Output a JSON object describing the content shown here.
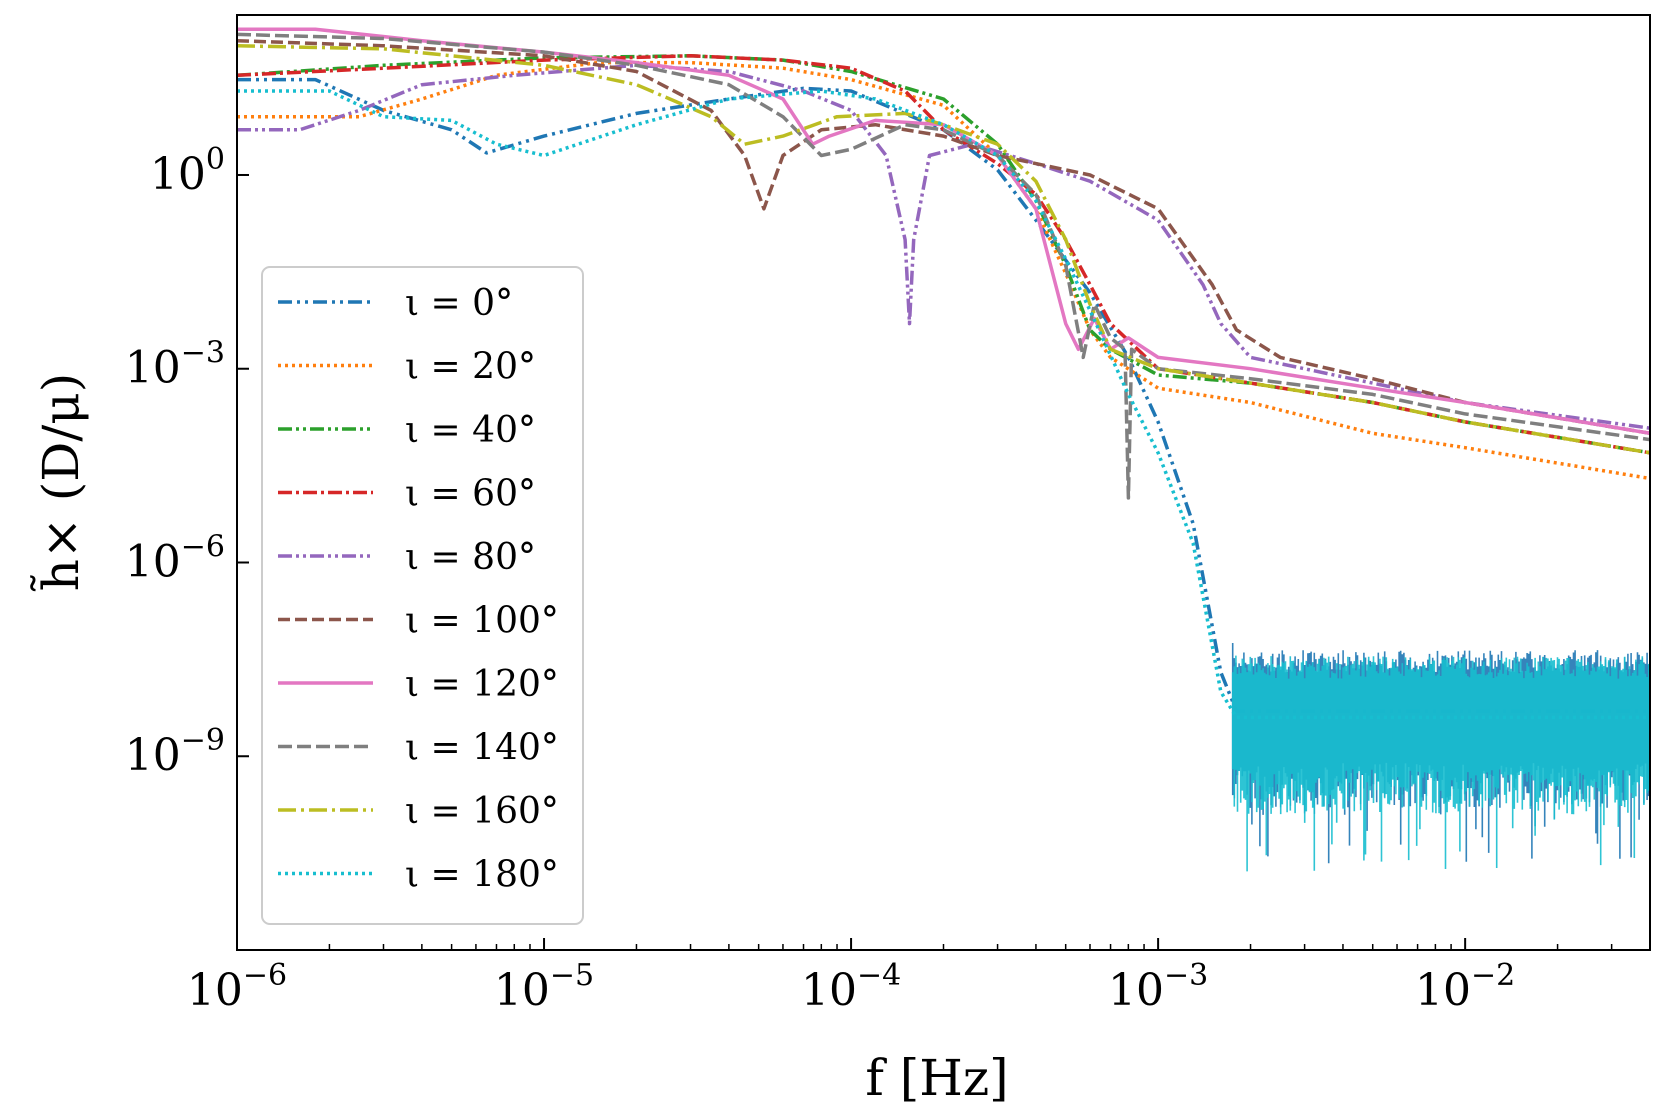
{
  "chart_data": {
    "type": "line",
    "scale": "log-log",
    "xlabel": "f [Hz]",
    "ylabel": "h̃× (D/μ)",
    "xlim": [
      1e-06,
      0.04
    ],
    "ylim": [
      1e-12,
      300
    ],
    "x_ticks": [
      {
        "value": 1e-06,
        "base": "10",
        "exp": "−6"
      },
      {
        "value": 1e-05,
        "base": "10",
        "exp": "−5"
      },
      {
        "value": 0.0001,
        "base": "10",
        "exp": "−4"
      },
      {
        "value": 0.001,
        "base": "10",
        "exp": "−3"
      },
      {
        "value": 0.01,
        "base": "10",
        "exp": "−2"
      }
    ],
    "y_ticks": [
      {
        "value": 1,
        "base": "10",
        "exp": "0"
      },
      {
        "value": 0.001,
        "base": "10",
        "exp": "−3"
      },
      {
        "value": 1e-06,
        "base": "10",
        "exp": "−6"
      },
      {
        "value": 1e-09,
        "base": "10",
        "exp": "−9"
      }
    ],
    "legend_position": "center-left",
    "series": [
      {
        "name": "ι = 0°",
        "color": "#1f77b4",
        "dash": "14,5,3,5,3,5",
        "width": 3.5,
        "noise": true,
        "points": [
          [
            1e-06,
            30
          ],
          [
            1.8e-06,
            30
          ],
          [
            3e-06,
            10
          ],
          [
            5e-06,
            5
          ],
          [
            6.5e-06,
            2.2
          ],
          [
            1e-05,
            4
          ],
          [
            2e-05,
            9
          ],
          [
            4e-05,
            15
          ],
          [
            7e-05,
            22
          ],
          [
            0.0001,
            20
          ],
          [
            0.0002,
            5
          ],
          [
            0.0003,
            1.2
          ],
          [
            0.0004,
            0.2
          ],
          [
            0.0006,
            0.015
          ],
          [
            0.0008,
            0.0015
          ],
          [
            0.001,
            0.00015
          ],
          [
            0.0013,
            4e-06
          ],
          [
            0.0016,
            2e-08
          ],
          [
            0.0018,
            5e-09
          ],
          [
            0.04,
            5e-09
          ]
        ]
      },
      {
        "name": "ι = 20°",
        "color": "#ff7f0e",
        "dash": "3,4",
        "width": 3.5,
        "points": [
          [
            1e-06,
            8
          ],
          [
            2.5e-06,
            8
          ],
          [
            4e-06,
            15
          ],
          [
            7e-06,
            35
          ],
          [
            1.5e-05,
            55
          ],
          [
            3e-05,
            55
          ],
          [
            6e-05,
            45
          ],
          [
            0.0001,
            30
          ],
          [
            0.0002,
            12
          ],
          [
            0.0003,
            2
          ],
          [
            0.0004,
            0.3
          ],
          [
            0.0005,
            0.03
          ],
          [
            0.0006,
            0.004
          ],
          [
            0.0007,
            0.0015
          ],
          [
            0.001,
            0.0005
          ],
          [
            0.002,
            0.0003
          ],
          [
            0.005,
            0.0001
          ],
          [
            0.01,
            6e-05
          ],
          [
            0.04,
            2e-05
          ]
        ]
      },
      {
        "name": "ι = 40°",
        "color": "#2ca02c",
        "dash": "14,4,3,4,3,4",
        "width": 3.5,
        "points": [
          [
            1e-06,
            35
          ],
          [
            3e-06,
            50
          ],
          [
            1e-05,
            65
          ],
          [
            3e-05,
            70
          ],
          [
            6e-05,
            60
          ],
          [
            0.0001,
            40
          ],
          [
            0.0002,
            15
          ],
          [
            0.0003,
            3
          ],
          [
            0.0004,
            0.4
          ],
          [
            0.0005,
            0.04
          ],
          [
            0.0006,
            0.004
          ],
          [
            0.0007,
            0.002
          ],
          [
            0.001,
            0.0008
          ],
          [
            0.002,
            0.0006
          ],
          [
            0.005,
            0.0003
          ],
          [
            0.01,
            0.00015
          ],
          [
            0.04,
            5e-05
          ]
        ]
      },
      {
        "name": "ι = 60°",
        "color": "#d62728",
        "dash": "14,4,3,4",
        "width": 3.5,
        "points": [
          [
            1e-06,
            35
          ],
          [
            3e-06,
            45
          ],
          [
            1e-05,
            60
          ],
          [
            3e-05,
            70
          ],
          [
            6e-05,
            60
          ],
          [
            0.0001,
            45
          ],
          [
            0.00015,
            20
          ],
          [
            0.0002,
            5
          ],
          [
            0.0003,
            1.5
          ],
          [
            0.0004,
            0.5
          ],
          [
            0.0005,
            0.1
          ],
          [
            0.0006,
            0.02
          ],
          [
            0.0007,
            0.005
          ],
          [
            0.001,
            0.001
          ],
          [
            0.002,
            0.0006
          ],
          [
            0.005,
            0.0003
          ],
          [
            0.01,
            0.00015
          ],
          [
            0.04,
            5e-05
          ]
        ]
      },
      {
        "name": "ι = 80°",
        "color": "#9467bd",
        "dash": "14,4,3,4,3,4",
        "width": 3.5,
        "points": [
          [
            1e-06,
            5
          ],
          [
            1.6e-06,
            5
          ],
          [
            2.5e-06,
            10
          ],
          [
            4e-06,
            25
          ],
          [
            8e-06,
            35
          ],
          [
            2e-05,
            50
          ],
          [
            4e-05,
            40
          ],
          [
            7e-05,
            20
          ],
          [
            0.0001,
            10
          ],
          [
            0.00013,
            2
          ],
          [
            0.00015,
            0.1
          ],
          [
            0.000155,
            0.005
          ],
          [
            0.00016,
            0.1
          ],
          [
            0.00018,
            2
          ],
          [
            0.00025,
            3
          ],
          [
            0.0004,
            1.5
          ],
          [
            0.0006,
            0.8
          ],
          [
            0.001,
            0.2
          ],
          [
            0.0014,
            0.02
          ],
          [
            0.0016,
            0.005
          ],
          [
            0.002,
            0.0015
          ],
          [
            0.005,
            0.0006
          ],
          [
            0.01,
            0.0003
          ],
          [
            0.04,
            0.00012
          ]
        ]
      },
      {
        "name": "ι = 100°",
        "color": "#8c564b",
        "dash": "12,5",
        "width": 3.5,
        "points": [
          [
            1e-06,
            120
          ],
          [
            3e-06,
            100
          ],
          [
            1e-05,
            70
          ],
          [
            2e-05,
            40
          ],
          [
            3.5e-05,
            10
          ],
          [
            4.5e-05,
            2
          ],
          [
            5.2e-05,
            0.3
          ],
          [
            6e-05,
            2
          ],
          [
            8e-05,
            5
          ],
          [
            0.00012,
            6
          ],
          [
            0.0002,
            4
          ],
          [
            0.0003,
            2
          ],
          [
            0.0004,
            1.5
          ],
          [
            0.0006,
            1
          ],
          [
            0.001,
            0.3
          ],
          [
            0.0015,
            0.02
          ],
          [
            0.0018,
            0.004
          ],
          [
            0.0025,
            0.0015
          ],
          [
            0.005,
            0.0007
          ],
          [
            0.01,
            0.0003
          ],
          [
            0.04,
            0.0001
          ]
        ]
      },
      {
        "name": "ι = 120°",
        "color": "#e377c2",
        "dash": "",
        "width": 3.5,
        "points": [
          [
            1e-06,
            180
          ],
          [
            1.8e-06,
            180
          ],
          [
            4e-06,
            120
          ],
          [
            1e-05,
            80
          ],
          [
            2e-05,
            55
          ],
          [
            4e-05,
            35
          ],
          [
            6e-05,
            15
          ],
          [
            7.5e-05,
            3
          ],
          [
            8.5e-05,
            4
          ],
          [
            0.00012,
            7
          ],
          [
            0.0002,
            6
          ],
          [
            0.0003,
            2
          ],
          [
            0.0004,
            0.3
          ],
          [
            0.0005,
            0.005
          ],
          [
            0.00055,
            0.002
          ],
          [
            0.00062,
            0.006
          ],
          [
            0.0007,
            0.002
          ],
          [
            0.0008,
            0.003
          ],
          [
            0.001,
            0.0015
          ],
          [
            0.002,
            0.001
          ],
          [
            0.005,
            0.0005
          ],
          [
            0.01,
            0.0003
          ],
          [
            0.04,
            0.0001
          ]
        ]
      },
      {
        "name": "ι = 140°",
        "color": "#7f7f7f",
        "dash": "14,5",
        "width": 3.5,
        "points": [
          [
            1e-06,
            150
          ],
          [
            3e-06,
            130
          ],
          [
            1e-05,
            80
          ],
          [
            2e-05,
            50
          ],
          [
            4e-05,
            25
          ],
          [
            6e-05,
            8
          ],
          [
            8e-05,
            2
          ],
          [
            0.0001,
            2.5
          ],
          [
            0.00015,
            6
          ],
          [
            0.0002,
            5
          ],
          [
            0.0003,
            2
          ],
          [
            0.0004,
            0.5
          ],
          [
            0.0005,
            0.04
          ],
          [
            0.00057,
            0.0015
          ],
          [
            0.00062,
            0.01
          ],
          [
            0.0007,
            0.003
          ],
          [
            0.00078,
            0.002
          ],
          [
            0.0008,
            1e-05
          ],
          [
            0.00082,
            0.002
          ],
          [
            0.001,
            0.001
          ],
          [
            0.002,
            0.0007
          ],
          [
            0.005,
            0.0004
          ],
          [
            0.01,
            0.0002
          ],
          [
            0.04,
            8e-05
          ]
        ]
      },
      {
        "name": "ι = 160°",
        "color": "#bcbd22",
        "dash": "18,5,3,5",
        "width": 3.5,
        "points": [
          [
            1e-06,
            100
          ],
          [
            3e-06,
            90
          ],
          [
            1e-05,
            50
          ],
          [
            2e-05,
            25
          ],
          [
            3.5e-05,
            8
          ],
          [
            4.5e-05,
            3
          ],
          [
            6e-05,
            4
          ],
          [
            9e-05,
            8
          ],
          [
            0.00015,
            9
          ],
          [
            0.0002,
            6
          ],
          [
            0.0003,
            3
          ],
          [
            0.0004,
            0.8
          ],
          [
            0.0005,
            0.1
          ],
          [
            0.0006,
            0.01
          ],
          [
            0.0007,
            0.002
          ],
          [
            0.001,
            0.001
          ],
          [
            0.002,
            0.0006
          ],
          [
            0.005,
            0.0003
          ],
          [
            0.01,
            0.00015
          ],
          [
            0.04,
            5e-05
          ]
        ]
      },
      {
        "name": "ι = 180°",
        "color": "#17becf",
        "dash": "3,4",
        "width": 3.5,
        "noise": true,
        "points": [
          [
            1e-06,
            20
          ],
          [
            2e-06,
            20
          ],
          [
            3e-06,
            8
          ],
          [
            5e-06,
            7
          ],
          [
            7e-06,
            3
          ],
          [
            1e-05,
            2
          ],
          [
            2e-05,
            6
          ],
          [
            4e-05,
            15
          ],
          [
            8e-05,
            20
          ],
          [
            0.00012,
            15
          ],
          [
            0.0002,
            6
          ],
          [
            0.0003,
            2
          ],
          [
            0.0004,
            0.4
          ],
          [
            0.0005,
            0.05
          ],
          [
            0.0006,
            0.008
          ],
          [
            0.0008,
            0.0004
          ],
          [
            0.001,
            5e-05
          ],
          [
            0.0013,
            2e-06
          ],
          [
            0.0016,
            1e-08
          ],
          [
            0.0018,
            4e-09
          ],
          [
            0.04,
            4e-09
          ]
        ]
      }
    ]
  }
}
